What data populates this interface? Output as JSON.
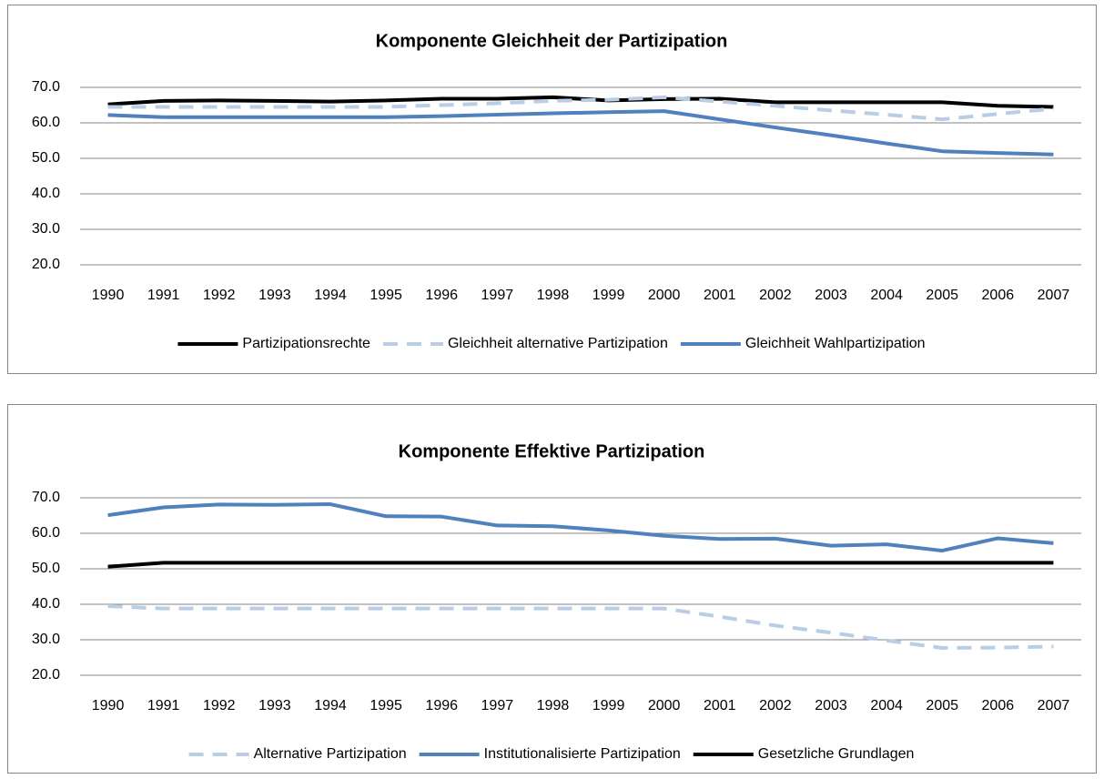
{
  "chart_data": [
    {
      "type": "line",
      "title": "Komponente Gleichheit der Partizipation",
      "categories": [
        "1990",
        "1991",
        "1992",
        "1993",
        "1994",
        "1995",
        "1996",
        "1997",
        "1998",
        "1999",
        "2000",
        "2001",
        "2002",
        "2003",
        "2004",
        "2005",
        "2006",
        "2007"
      ],
      "ylim": [
        20,
        70
      ],
      "yticks": [
        {
          "value": 20,
          "label": "20.0"
        },
        {
          "value": 30,
          "label": "30.0"
        },
        {
          "value": 40,
          "label": "40.0"
        },
        {
          "value": 50,
          "label": "50.0"
        },
        {
          "value": 60,
          "label": "60.0"
        },
        {
          "value": 70,
          "label": "70.0"
        }
      ],
      "grid": true,
      "legend": "bottom",
      "series": [
        {
          "name": "Partizipationsrechte",
          "color": "#000000",
          "dashed": false,
          "values": [
            65.2,
            66.2,
            66.3,
            66.2,
            66.0,
            66.3,
            66.8,
            66.8,
            67.2,
            66.3,
            66.7,
            66.8,
            65.8,
            65.8,
            65.8,
            65.8,
            64.8,
            64.5
          ]
        },
        {
          "name": "Gleichheit alternative Partizipation",
          "color": "#b9cde5",
          "dashed": true,
          "values": [
            64.5,
            64.5,
            64.5,
            64.5,
            64.5,
            64.5,
            65.0,
            65.5,
            66.2,
            66.5,
            67.2,
            66.0,
            64.8,
            63.5,
            62.3,
            61.0,
            62.5,
            64.0
          ]
        },
        {
          "name": "Gleichheit Wahlpartizipation",
          "color": "#4f81bd",
          "dashed": false,
          "values": [
            62.2,
            61.6,
            61.6,
            61.6,
            61.6,
            61.6,
            61.9,
            62.3,
            62.7,
            63.0,
            63.3,
            61.0,
            58.7,
            56.5,
            54.2,
            52.0,
            51.5,
            51.1
          ]
        }
      ]
    },
    {
      "type": "line",
      "title": "Komponente Effektive Partizipation",
      "categories": [
        "1990",
        "1991",
        "1992",
        "1993",
        "1994",
        "1995",
        "1996",
        "1997",
        "1998",
        "1999",
        "2000",
        "2001",
        "2002",
        "2003",
        "2004",
        "2005",
        "2006",
        "2007"
      ],
      "ylim": [
        20,
        70
      ],
      "yticks": [
        {
          "value": 20,
          "label": "20.0"
        },
        {
          "value": 30,
          "label": "30.0"
        },
        {
          "value": 40,
          "label": "40.0"
        },
        {
          "value": 50,
          "label": "50.0"
        },
        {
          "value": 60,
          "label": "60.0"
        },
        {
          "value": 70,
          "label": "70.0"
        }
      ],
      "grid": true,
      "legend": "bottom",
      "series": [
        {
          "name": "Alternative Partizipation",
          "color": "#b9cde5",
          "dashed": true,
          "values": [
            39.5,
            38.8,
            38.8,
            38.8,
            38.8,
            38.8,
            38.8,
            38.8,
            38.8,
            38.8,
            38.8,
            36.5,
            34.0,
            32.0,
            29.8,
            27.7,
            27.8,
            28.1
          ]
        },
        {
          "name": "Institutionalisierte Partizipation",
          "color": "#4f81bd",
          "dashed": false,
          "values": [
            65.1,
            67.3,
            68.1,
            68.0,
            68.2,
            64.8,
            64.7,
            62.2,
            62.0,
            60.8,
            59.3,
            58.4,
            58.5,
            56.5,
            56.9,
            55.1,
            58.6,
            57.2
          ]
        },
        {
          "name": "Gesetzliche Grundlagen",
          "color": "#000000",
          "dashed": false,
          "values": [
            50.6,
            51.7,
            51.7,
            51.7,
            51.7,
            51.7,
            51.7,
            51.7,
            51.7,
            51.7,
            51.7,
            51.7,
            51.7,
            51.7,
            51.7,
            51.7,
            51.7,
            51.7
          ]
        }
      ]
    }
  ]
}
